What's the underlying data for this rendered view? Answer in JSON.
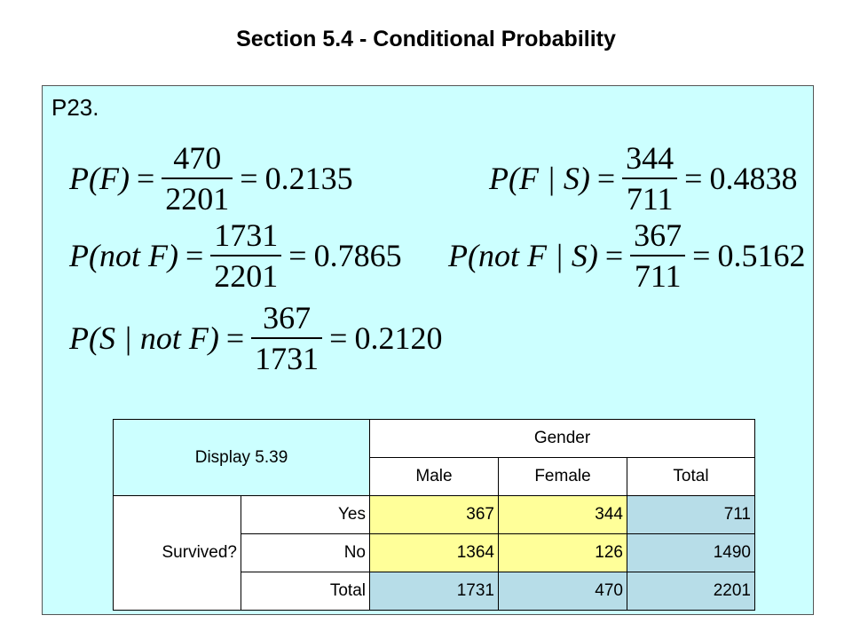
{
  "slide": {
    "title": "Section 5.4 - Conditional Probability",
    "problem_label": "P23."
  },
  "equations": {
    "p_f": {
      "lhs": "P(F)",
      "numerator": "470",
      "denominator": "2201",
      "result": "0.2135"
    },
    "p_f_given_s": {
      "lhs": "P(F | S)",
      "numerator": "344",
      "denominator": "711",
      "result": "0.4838"
    },
    "p_not_f": {
      "lhs": "P(not F)",
      "numerator": "1731",
      "denominator": "2201",
      "result": "0.7865"
    },
    "p_not_f_given_s": {
      "lhs": "P(not F | S)",
      "numerator": "367",
      "denominator": "711",
      "result": "0.5162"
    },
    "p_s_given_not_f": {
      "lhs": "P(S | not F)",
      "numerator": "367",
      "denominator": "1731",
      "result": "0.2120"
    }
  },
  "table": {
    "caption": "Display 5.39",
    "column_group": "Gender",
    "columns": [
      "Male",
      "Female",
      "Total"
    ],
    "row_group": "Survived?",
    "rows": [
      {
        "label": "Yes",
        "values": [
          "367",
          "344",
          "711"
        ]
      },
      {
        "label": "No",
        "values": [
          "1364",
          "126",
          "1490"
        ]
      },
      {
        "label": "Total",
        "values": [
          "1731",
          "470",
          "2201"
        ]
      }
    ]
  },
  "colors": {
    "panel_background": "#ccffff",
    "count_cells": "#ffff99",
    "total_cells": "#b7dde8"
  }
}
